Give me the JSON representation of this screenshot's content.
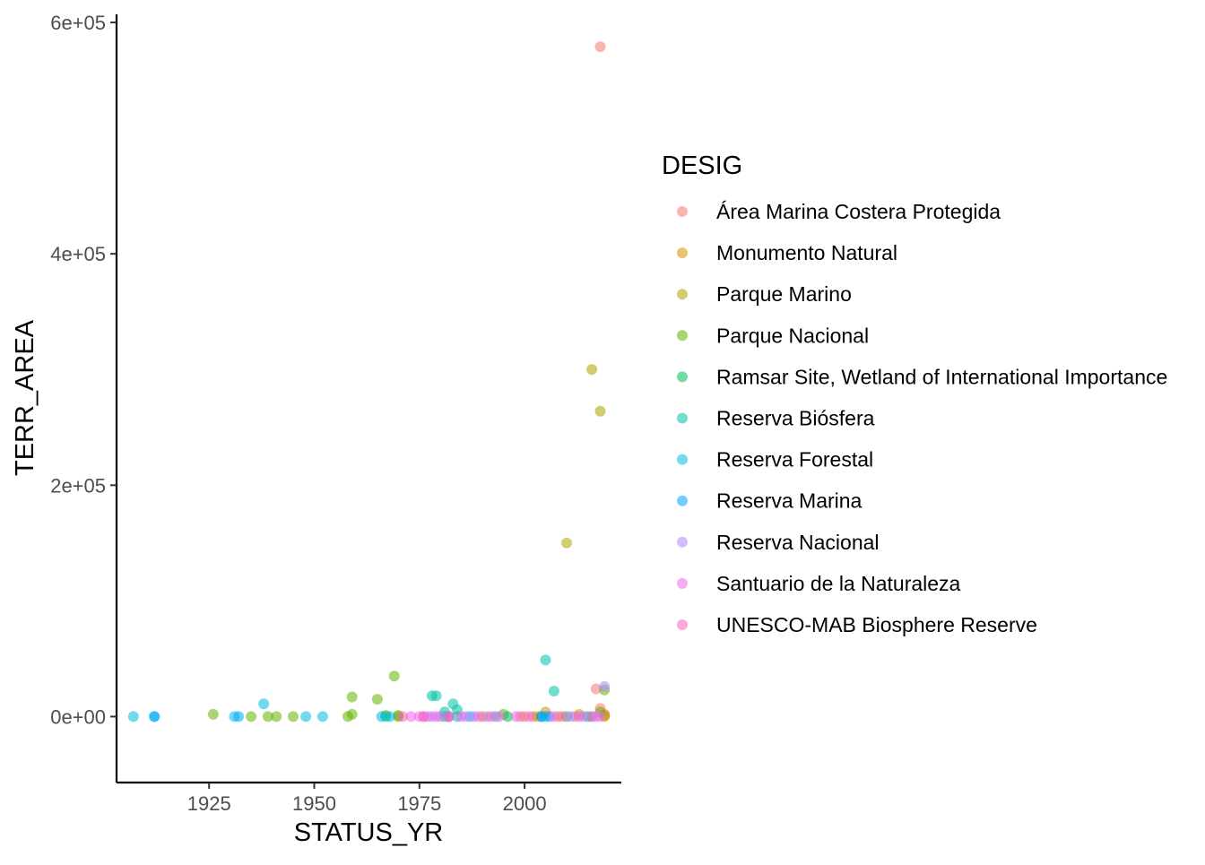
{
  "chart_data": {
    "type": "scatter",
    "title": "",
    "xlabel": "STATUS_YR",
    "ylabel": "TERR_AREA",
    "xlim": [
      1903,
      2023
    ],
    "ylim": [
      -57000,
      607000
    ],
    "x_ticks": [
      1925,
      1950,
      1975,
      2000
    ],
    "x_tick_labels": [
      "1925",
      "1950",
      "1975",
      "2000"
    ],
    "y_ticks": [
      0,
      200000,
      400000,
      600000
    ],
    "y_tick_labels": [
      "0e+00",
      "2e+05",
      "4e+05",
      "6e+05"
    ],
    "grid": false,
    "point_opacity": 0.55,
    "legend": {
      "title": "DESIG",
      "placement": "right"
    },
    "series": [
      {
        "name": "Área Marina Costera Protegida",
        "color": "#F8766D",
        "points": [
          [
            2018,
            579000
          ],
          [
            2017,
            24000
          ],
          [
            2018,
            7000
          ],
          [
            1999,
            0
          ],
          [
            2000,
            0
          ],
          [
            2003,
            0
          ],
          [
            2012,
            0
          ],
          [
            2019,
            2000
          ]
        ]
      },
      {
        "name": "Monumento Natural",
        "color": "#DB8E00",
        "points": [
          [
            2005,
            4000
          ],
          [
            2013,
            2000
          ],
          [
            2019,
            1000
          ],
          [
            1976,
            0
          ],
          [
            1990,
            0
          ],
          [
            2002,
            0
          ],
          [
            2008,
            0
          ],
          [
            2016,
            0
          ]
        ]
      },
      {
        "name": "Parque Marino",
        "color": "#AEA200",
        "points": [
          [
            2016,
            300000
          ],
          [
            2018,
            264000
          ],
          [
            2010,
            150000
          ],
          [
            2019,
            0
          ]
        ]
      },
      {
        "name": "Parque Nacional",
        "color": "#64B200",
        "points": [
          [
            1969,
            35000
          ],
          [
            1959,
            17000
          ],
          [
            1965,
            15000
          ],
          [
            2019,
            23000
          ],
          [
            1926,
            2000
          ],
          [
            1935,
            0
          ],
          [
            1939,
            0
          ],
          [
            1941,
            0
          ],
          [
            1945,
            0
          ],
          [
            1958,
            0
          ],
          [
            1959,
            2000
          ],
          [
            1967,
            1000
          ],
          [
            1970,
            1000
          ],
          [
            1970,
            0
          ],
          [
            1995,
            2000
          ],
          [
            2018,
            4000
          ]
        ]
      },
      {
        "name": "Ramsar Site, Wetland of International Importance",
        "color": "#00BD5C",
        "points": [
          [
            1981,
            0
          ],
          [
            1996,
            0
          ],
          [
            2004,
            0
          ],
          [
            2010,
            0
          ],
          [
            2015,
            0
          ]
        ]
      },
      {
        "name": "Reserva Biósfera",
        "color": "#00C1A7",
        "points": [
          [
            2005,
            49000
          ],
          [
            2007,
            22000
          ],
          [
            1978,
            18000
          ],
          [
            1979,
            18000
          ],
          [
            1983,
            11000
          ],
          [
            1984,
            6000
          ],
          [
            1981,
            4000
          ],
          [
            1967,
            0
          ],
          [
            1984,
            0
          ]
        ]
      },
      {
        "name": "Reserva Forestal",
        "color": "#00BADE",
        "points": [
          [
            1907,
            0
          ],
          [
            1912,
            0
          ],
          [
            1931,
            0
          ],
          [
            1938,
            11000
          ],
          [
            1948,
            0
          ],
          [
            1952,
            0
          ],
          [
            1966,
            0
          ],
          [
            1968,
            0
          ],
          [
            1982,
            0
          ],
          [
            1987,
            0
          ],
          [
            1993,
            0
          ]
        ]
      },
      {
        "name": "Reserva Marina",
        "color": "#00A6FF",
        "points": [
          [
            1912,
            0
          ],
          [
            1932,
            0
          ],
          [
            2004,
            0
          ],
          [
            2005,
            0
          ],
          [
            2006,
            0
          ]
        ]
      },
      {
        "name": "Reserva Nacional",
        "color": "#B385FF",
        "points": [
          [
            2019,
            26000
          ],
          [
            1978,
            0
          ],
          [
            1980,
            0
          ],
          [
            1986,
            0
          ],
          [
            1988,
            0
          ],
          [
            1991,
            0
          ],
          [
            2011,
            0
          ],
          [
            2014,
            0
          ],
          [
            2017,
            0
          ]
        ]
      },
      {
        "name": "Santuario de la Naturaleza",
        "color": "#EF67EB",
        "points": [
          [
            1973,
            0
          ],
          [
            1975,
            0
          ],
          [
            1976,
            0
          ],
          [
            1977,
            0
          ],
          [
            1979,
            0
          ],
          [
            1982,
            0
          ],
          [
            1985,
            0
          ],
          [
            1989,
            0
          ],
          [
            1994,
            0
          ],
          [
            1998,
            0
          ],
          [
            2001,
            0
          ],
          [
            2007,
            0
          ],
          [
            2013,
            0
          ],
          [
            2016,
            0
          ],
          [
            2018,
            0
          ]
        ]
      },
      {
        "name": "UNESCO-MAB Biosphere Reserve",
        "color": "#FF63B6",
        "points": [
          [
            1971,
            0
          ],
          [
            1982,
            0
          ],
          [
            1992,
            0
          ],
          [
            2009,
            0
          ]
        ]
      }
    ]
  }
}
